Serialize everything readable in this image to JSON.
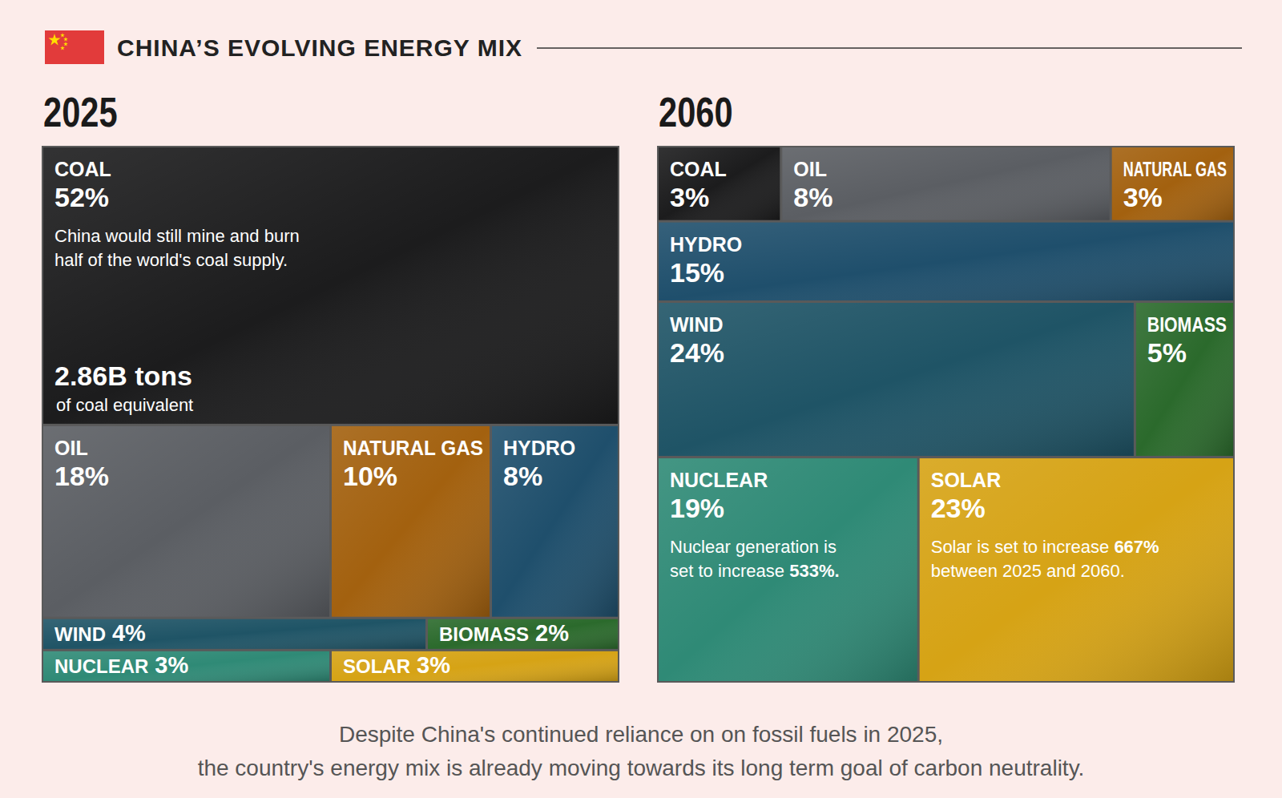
{
  "title": "CHINA’S EVOLVING ENERGY MIX",
  "chart_data": [
    {
      "type": "treemap",
      "title": "2025",
      "categories": [
        "COAL",
        "OIL",
        "NATURAL GAS",
        "HYDRO",
        "WIND",
        "BIOMASS",
        "NUCLEAR",
        "SOLAR"
      ],
      "values": [
        52,
        18,
        10,
        8,
        4,
        2,
        3,
        3
      ],
      "value_labels": [
        "52%",
        "18%",
        "10%",
        "8%",
        "4%",
        "2%",
        "3%",
        "3%"
      ],
      "colors": [
        "#1c1c1d",
        "#5b5e63",
        "#a3610f",
        "#1f4f6c",
        "#1f5466",
        "#2b6a2c",
        "#2f8a76",
        "#d6a315"
      ],
      "data_labels": true,
      "annotations": [
        {
          "category": "COAL",
          "lines": [
            "China would still mine and burn",
            "half of the world's coal supply."
          ]
        }
      ],
      "stat": {
        "category": "COAL",
        "text": "2.86B tons",
        "note": "of coal equivalent"
      }
    },
    {
      "type": "treemap",
      "title": "2060",
      "categories": [
        "COAL",
        "OIL",
        "NATURAL GAS",
        "HYDRO",
        "WIND",
        "BIOMASS",
        "NUCLEAR",
        "SOLAR"
      ],
      "values": [
        3,
        8,
        3,
        15,
        24,
        5,
        19,
        23
      ],
      "value_labels": [
        "3%",
        "8%",
        "3%",
        "15%",
        "24%",
        "5%",
        "19%",
        "23%"
      ],
      "colors": [
        "#1c1c1d",
        "#5b5e63",
        "#a3610f",
        "#1f4f6c",
        "#1f5466",
        "#2b6a2c",
        "#2f8a76",
        "#d6a315"
      ],
      "data_labels": true,
      "annotations": [
        {
          "category": "NUCLEAR",
          "lines": [
            "Nuclear generation is",
            "set to increase 533%."
          ],
          "emphasis": "533%."
        },
        {
          "category": "SOLAR",
          "lines": [
            "Solar is set to increase 667%",
            "between 2025 and 2060."
          ],
          "emphasis": "667%"
        }
      ]
    }
  ],
  "caption": [
    "Despite China's continued reliance on on fossil fuels in 2025,",
    "the country's energy mix is already moving towards its long term goal of carbon neutrality."
  ]
}
